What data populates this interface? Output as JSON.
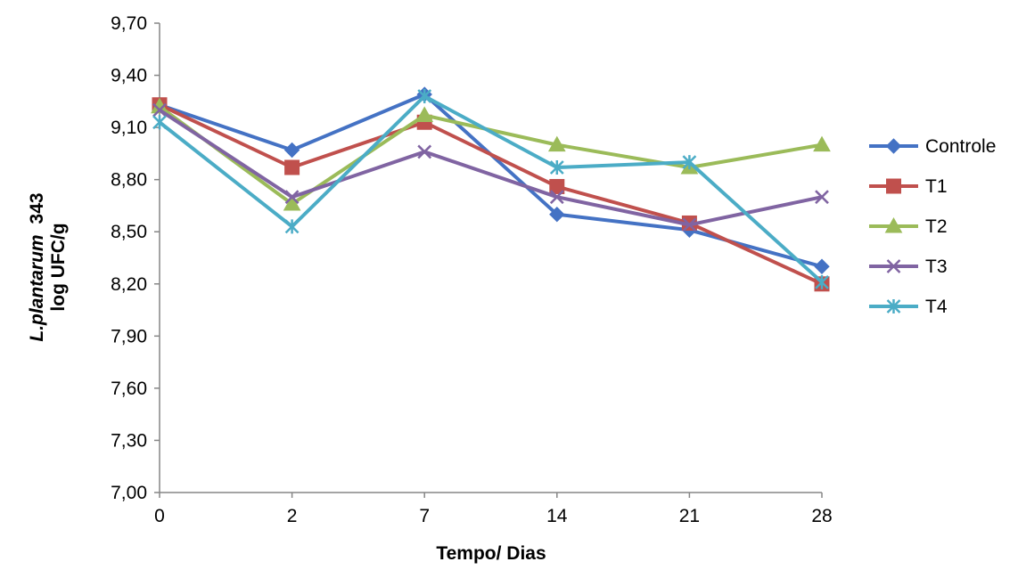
{
  "chart_data": {
    "type": "line",
    "xlabel": "Tempo/ Dias",
    "ylabel_line1_italic": "L.plantarum",
    "ylabel_line1_rest": "343",
    "ylabel_line2": "log UFC/g",
    "categories": [
      "0",
      "2",
      "7",
      "14",
      "21",
      "28"
    ],
    "ylim": [
      7.0,
      9.7
    ],
    "yticks": [
      "7,00",
      "7,30",
      "7,60",
      "7,90",
      "8,20",
      "8,50",
      "8,80",
      "9,10",
      "9,40",
      "9,70"
    ],
    "ytick_values": [
      7.0,
      7.3,
      7.6,
      7.9,
      8.2,
      8.5,
      8.8,
      9.1,
      9.4,
      9.7
    ],
    "grid": false,
    "legend_position": "right",
    "series": [
      {
        "name": "Controle",
        "color": "#4472C4",
        "marker": "diamond",
        "values": [
          9.23,
          8.97,
          9.29,
          8.6,
          8.51,
          8.3
        ]
      },
      {
        "name": "T1",
        "color": "#C0504D",
        "marker": "square",
        "values": [
          9.23,
          8.87,
          9.13,
          8.76,
          8.55,
          8.2
        ]
      },
      {
        "name": "T2",
        "color": "#9BBB59",
        "marker": "triangle",
        "values": [
          9.22,
          8.66,
          9.17,
          9.0,
          8.87,
          9.0
        ]
      },
      {
        "name": "T3",
        "color": "#8064A2",
        "marker": "x",
        "values": [
          9.2,
          8.7,
          8.96,
          8.7,
          8.54,
          8.7
        ]
      },
      {
        "name": "T4",
        "color": "#4BACC6",
        "marker": "star",
        "values": [
          9.13,
          8.53,
          9.28,
          8.87,
          8.9,
          8.21
        ]
      }
    ]
  }
}
